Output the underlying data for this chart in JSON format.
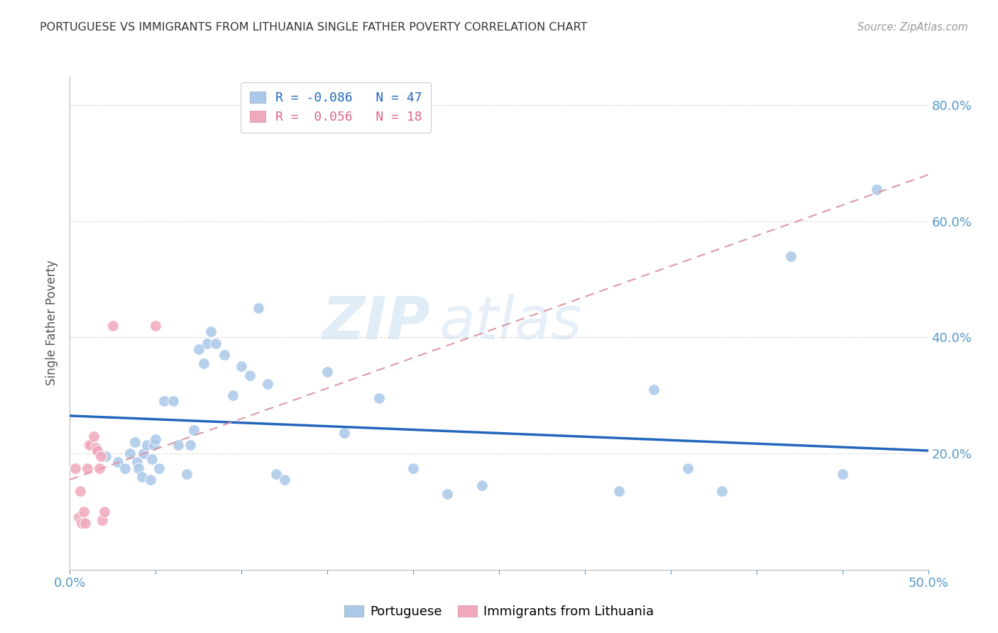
{
  "title": "PORTUGUESE VS IMMIGRANTS FROM LITHUANIA SINGLE FATHER POVERTY CORRELATION CHART",
  "source": "Source: ZipAtlas.com",
  "ylabel": "Single Father Poverty",
  "x_min": 0.0,
  "x_max": 0.5,
  "y_min": 0.0,
  "y_max": 0.85,
  "y_ticks": [
    0.2,
    0.4,
    0.6,
    0.8
  ],
  "x_ticks": [
    0.0,
    0.05,
    0.1,
    0.15,
    0.2,
    0.25,
    0.3,
    0.35,
    0.4,
    0.45,
    0.5
  ],
  "x_labels_show": [
    0.0,
    0.5
  ],
  "legend_r1": "R = -0.086   N = 47",
  "legend_r2": "R =  0.056   N = 18",
  "portuguese_x": [
    0.021,
    0.028,
    0.032,
    0.035,
    0.038,
    0.039,
    0.04,
    0.042,
    0.043,
    0.045,
    0.047,
    0.048,
    0.049,
    0.05,
    0.052,
    0.055,
    0.06,
    0.063,
    0.068,
    0.07,
    0.072,
    0.075,
    0.078,
    0.08,
    0.082,
    0.085,
    0.09,
    0.095,
    0.1,
    0.105,
    0.11,
    0.115,
    0.12,
    0.125,
    0.15,
    0.16,
    0.18,
    0.2,
    0.22,
    0.24,
    0.32,
    0.34,
    0.36,
    0.38,
    0.42,
    0.45,
    0.47
  ],
  "portuguese_y": [
    0.195,
    0.185,
    0.175,
    0.2,
    0.22,
    0.185,
    0.175,
    0.16,
    0.2,
    0.215,
    0.155,
    0.19,
    0.215,
    0.225,
    0.175,
    0.29,
    0.29,
    0.215,
    0.165,
    0.215,
    0.24,
    0.38,
    0.355,
    0.39,
    0.41,
    0.39,
    0.37,
    0.3,
    0.35,
    0.335,
    0.45,
    0.32,
    0.165,
    0.155,
    0.34,
    0.235,
    0.295,
    0.175,
    0.13,
    0.145,
    0.135,
    0.31,
    0.175,
    0.135,
    0.54,
    0.165,
    0.655
  ],
  "lithuania_x": [
    0.003,
    0.005,
    0.006,
    0.007,
    0.008,
    0.009,
    0.01,
    0.011,
    0.012,
    0.014,
    0.015,
    0.016,
    0.017,
    0.018,
    0.019,
    0.02,
    0.025,
    0.05
  ],
  "lithuania_y": [
    0.175,
    0.09,
    0.135,
    0.08,
    0.1,
    0.08,
    0.175,
    0.215,
    0.215,
    0.23,
    0.21,
    0.205,
    0.175,
    0.195,
    0.085,
    0.1,
    0.42,
    0.42
  ],
  "blue_line_x": [
    0.0,
    0.5
  ],
  "blue_line_y": [
    0.265,
    0.205
  ],
  "pink_line_x": [
    0.0,
    0.5
  ],
  "pink_line_y": [
    0.155,
    0.68
  ],
  "watermark_zip": "ZIP",
  "watermark_atlas": "atlas",
  "title_color": "#333333",
  "axis_label_color": "#5599cc",
  "grid_color": "#dddddd",
  "blue_scatter_color": "#aac8e8",
  "pink_scatter_color": "#f0a8bc",
  "blue_line_color": "#2266bb",
  "pink_line_color": "#dd99aa",
  "legend_box_blue": "#aac8e8",
  "legend_box_pink": "#f0a8bc",
  "legend_text_blue": "#2266bb",
  "legend_text_pink": "#dd6688"
}
